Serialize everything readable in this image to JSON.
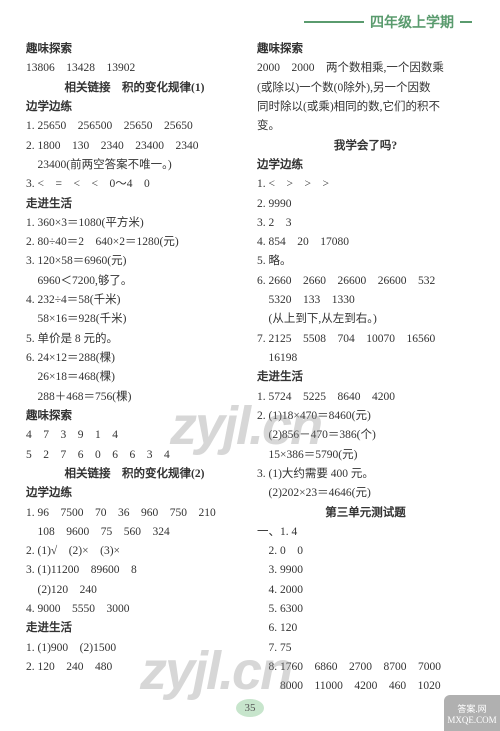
{
  "header": {
    "title": "四年级上学期"
  },
  "left": [
    {
      "t": "趣味探索",
      "b": true
    },
    {
      "t": "13806　13428　13902"
    },
    {
      "t": "相关链接　积的变化规律(1)",
      "b": true,
      "c": true
    },
    {
      "t": "边学边练",
      "b": true
    },
    {
      "t": "1. 25650　256500　25650　25650"
    },
    {
      "t": "2. 1800　130　2340　23400　2340"
    },
    {
      "t": "　23400(前两空答案不唯一。)"
    },
    {
      "t": "3. <　=　<　<　0～4　0"
    },
    {
      "t": "走进生活",
      "b": true
    },
    {
      "t": "1. 360×3＝1080(平方米)"
    },
    {
      "t": "2. 80÷40＝2　640×2＝1280(元)"
    },
    {
      "t": "3. 120×58＝6960(元)"
    },
    {
      "t": "　6960＜7200,够了。"
    },
    {
      "t": "4. 232÷4＝58(千米)"
    },
    {
      "t": "　58×16＝928(千米)"
    },
    {
      "t": "5. 单价是 8 元的。"
    },
    {
      "t": "6. 24×12＝288(棵)"
    },
    {
      "t": "　26×18＝468(棵)"
    },
    {
      "t": "　288＋468＝756(棵)"
    },
    {
      "t": "趣味探索",
      "b": true
    },
    {
      "t": "4　7　3　9　1　4"
    },
    {
      "t": "5　2　7　6　0　6　6　3　4"
    },
    {
      "t": "相关链接　积的变化规律(2)",
      "b": true,
      "c": true
    },
    {
      "t": "边学边练",
      "b": true
    },
    {
      "t": "1. 96　7500　70　36　960　750　210"
    },
    {
      "t": "　108　9600　75　560　324"
    },
    {
      "t": "2. (1)√　(2)×　(3)×"
    },
    {
      "t": "3. (1)11200　89600　8"
    },
    {
      "t": "　(2)120　240"
    },
    {
      "t": "4. 9000　5550　3000"
    },
    {
      "t": "走进生活",
      "b": true
    },
    {
      "t": "1. (1)900　(2)1500"
    },
    {
      "t": "2. 120　240　480"
    }
  ],
  "right": [
    {
      "t": "趣味探索",
      "b": true
    },
    {
      "t": "2000　2000　两个数相乘,一个因数乘"
    },
    {
      "t": "(或除以)一个数(0除外),另一个因数"
    },
    {
      "t": "同时除以(或乘)相同的数,它们的积不"
    },
    {
      "t": "变。"
    },
    {
      "t": "我学会了吗?",
      "b": true,
      "c": true
    },
    {
      "t": "边学边练",
      "b": true
    },
    {
      "t": "1. <　>　>　>"
    },
    {
      "t": "2. 9990"
    },
    {
      "t": "3. 2　3"
    },
    {
      "t": "4. 854　20　17080"
    },
    {
      "t": "5. 略。"
    },
    {
      "t": "6. 2660　2660　26600　26600　532"
    },
    {
      "t": "　5320　133　1330"
    },
    {
      "t": "　(从上到下,从左到右。)"
    },
    {
      "t": "7. 2125　5508　704　10070　16560"
    },
    {
      "t": "　16198"
    },
    {
      "t": "走进生活",
      "b": true
    },
    {
      "t": "1. 5724　5225　8640　4200"
    },
    {
      "t": "2. (1)18×470＝8460(元)"
    },
    {
      "t": "　(2)856－470＝386(个)"
    },
    {
      "t": "　15×386＝5790(元)"
    },
    {
      "t": "3. (1)大约需要 400 元。"
    },
    {
      "t": "　(2)202×23＝4646(元)"
    },
    {
      "t": "第三单元测试题",
      "b": true,
      "c": true
    },
    {
      "t": "一、1. 4"
    },
    {
      "t": "　2. 0　0"
    },
    {
      "t": "　3. 9900"
    },
    {
      "t": "　4. 2000"
    },
    {
      "t": "　5. 6300"
    },
    {
      "t": "　6. 120"
    },
    {
      "t": "　7. 75"
    },
    {
      "t": "　8. 1760　6860　2700　8700　7000"
    },
    {
      "t": "　　8000　11000　4200　460　1020"
    }
  ],
  "page": "35",
  "watermark": "zyjl.cn",
  "badge": {
    "l1": "答案.网",
    "l2": "MXQE.COM"
  }
}
